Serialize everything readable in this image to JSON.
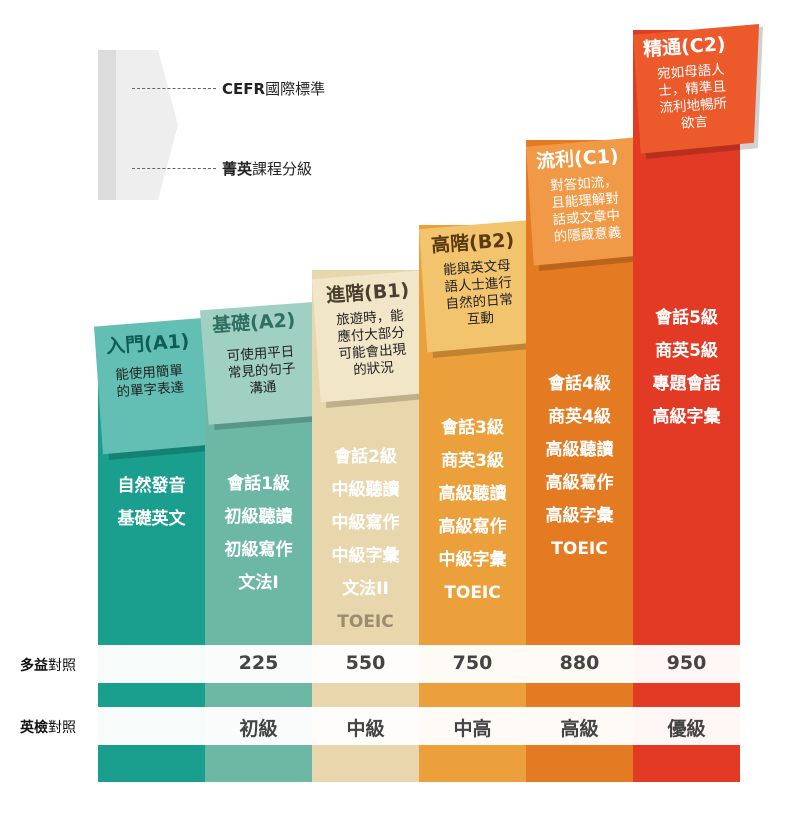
{
  "legend": {
    "cefr_bold": "CEFR",
    "cefr_rest": "國際標準",
    "course_bold": "菁英",
    "course_rest": "課程分級"
  },
  "levels": [
    {
      "title": "入門(A1)",
      "desc": [
        "能使用簡單",
        "的單字表達"
      ],
      "courses": [
        "自然發音",
        "基礎英文"
      ],
      "toeic": "",
      "gept": "",
      "color": "#1a9e8e",
      "flag_color": "#63bfb4",
      "title_color": "#0e5e56"
    },
    {
      "title": "基礎(A2)",
      "desc": [
        "可使用平日",
        "常見的句子",
        "溝通"
      ],
      "courses": [
        "會話1級",
        "初級聽讀",
        "初級寫作",
        "文法I"
      ],
      "toeic": "225",
      "gept": "初級",
      "color": "#6cb8a5",
      "flag_color": "#9fd0c1",
      "title_color": "#2f6e62"
    },
    {
      "title": "進階(B1)",
      "desc": [
        "旅遊時，能",
        "應付大部分",
        "可能會出現",
        "的狀況"
      ],
      "courses": [
        "會話2級",
        "中級聽讀",
        "中級寫作",
        "中級字彙",
        "文法II",
        "TOEIC"
      ],
      "toeic": "550",
      "gept": "中級",
      "color": "#e8d6ad",
      "flag_color": "#f2e6c8",
      "title_color": "#4a4030"
    },
    {
      "title": "高階(B2)",
      "desc": [
        "能與英文母",
        "語人士進行",
        "自然的日常",
        "互動"
      ],
      "courses": [
        "會話3級",
        "商英3級",
        "高級聽讀",
        "高級寫作",
        "中級字彙",
        "TOEIC"
      ],
      "toeic": "750",
      "gept": "中高",
      "color": "#eba03b",
      "flag_color": "#f3c46e",
      "title_color": "#5a3a10"
    },
    {
      "title": "流利(C1)",
      "desc": [
        "對答如流，",
        "且能理解對",
        "話或文章中",
        "的隱藏意義"
      ],
      "courses": [
        "會話4級",
        "商英4級",
        "高級聽讀",
        "高級寫作",
        "高級字彙",
        "TOEIC"
      ],
      "toeic": "880",
      "gept": "高級",
      "color": "#e47a22",
      "flag_color": "#f09a48",
      "title_color": "#ffffff"
    },
    {
      "title": "精通(C2)",
      "desc": [
        "宛如母語人",
        "士，精準且",
        "流利地暢所",
        "欲言"
      ],
      "courses": [
        "會話5級",
        "商英5級",
        "專題會話",
        "高級字彙"
      ],
      "toeic": "950",
      "gept": "優級",
      "color": "#e23a25",
      "flag_color": "#ec5a2c",
      "title_color": "#ffffff"
    }
  ],
  "bands": {
    "toeic_label_bold": "多益",
    "toeic_label_rest": "對照",
    "gept_label_bold": "英檢",
    "gept_label_rest": "對照"
  }
}
